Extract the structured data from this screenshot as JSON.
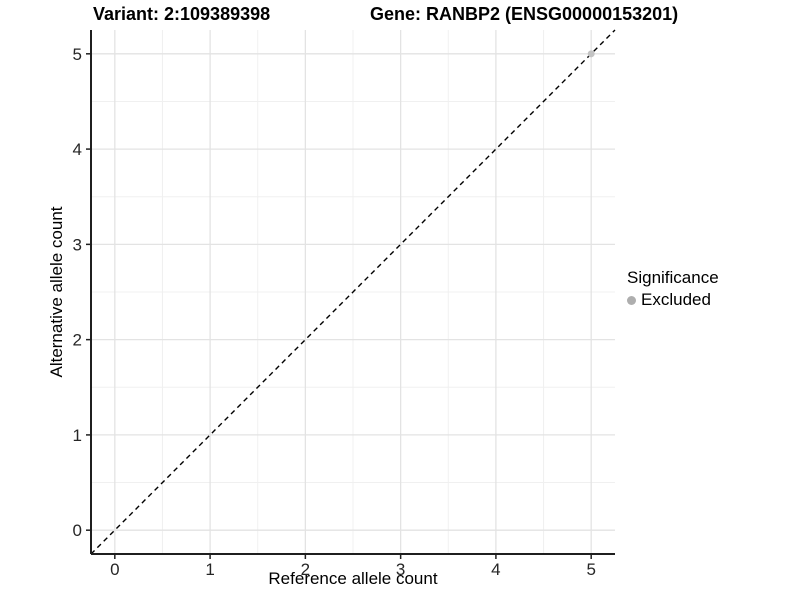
{
  "titles": {
    "variant": "Variant: 2:109389398",
    "gene": "Gene: RANBP2 (ENSG00000153201)"
  },
  "axes": {
    "x": {
      "label": "Reference allele count"
    },
    "y": {
      "label": "Alternative allele count"
    }
  },
  "legend": {
    "title": "Significance",
    "items": [
      {
        "label": "Excluded",
        "color": "#aeaeae",
        "marker": "circle"
      }
    ]
  },
  "chart_data": {
    "type": "scatter",
    "title": "Variant: 2:109389398   Gene: RANBP2 (ENSG00000153201)",
    "xlabel": "Reference allele count",
    "ylabel": "Alternative allele count",
    "xlim": [
      -0.25,
      5.25
    ],
    "ylim": [
      -0.25,
      5.25
    ],
    "xticks": [
      0,
      1,
      2,
      3,
      4,
      5
    ],
    "yticks": [
      0,
      1,
      2,
      3,
      4,
      5
    ],
    "xtick_labels": [
      "0",
      "1",
      "2",
      "3",
      "4",
      "5"
    ],
    "ytick_labels": [
      "0",
      "1",
      "2",
      "3",
      "4",
      "5"
    ],
    "minor_ticks": [
      0.5,
      1.5,
      2.5,
      3.5,
      4.5
    ],
    "grid": "on",
    "legend_position": "right",
    "series": [
      {
        "name": "Excluded",
        "color": "#c3c3c3",
        "points": [
          [
            5,
            5
          ]
        ]
      }
    ],
    "reference_line": {
      "type": "identity",
      "slope": 1,
      "intercept": 0,
      "linetype": "dashed",
      "color": "#000000"
    },
    "colors": {
      "background": "#ffffff",
      "grid_major": "#e3e3e3",
      "grid_minor": "#f0f0f0",
      "axis": "#1f1f1f",
      "tick_text": "#262626"
    }
  }
}
